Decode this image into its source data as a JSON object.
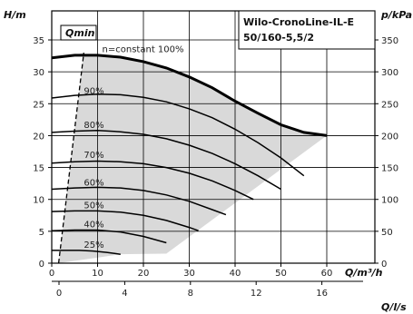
{
  "chart_data": {
    "type": "line",
    "title": "Wilo-CronoLine-IL-E",
    "subtitle": "50/160-5,5/2",
    "y_left_label": "H/m",
    "y_right_label": "p/kPa",
    "x_label": "Q/m³/h",
    "x2_label": "Q/l/s",
    "ylim": [
      0,
      36
    ],
    "xlim": [
      0,
      64
    ],
    "y_ticks": [
      0,
      5,
      10,
      15,
      20,
      25,
      30,
      35
    ],
    "y_right_ticks": [
      0,
      50,
      100,
      150,
      200,
      250,
      300,
      350
    ],
    "x_ticks": [
      0,
      10,
      20,
      30,
      40,
      50,
      60
    ],
    "x2_ticks": [
      0,
      4,
      8,
      12,
      16
    ],
    "qmin_label": "Qmin",
    "qmin_line": {
      "x": [
        1.5,
        7
      ],
      "y": [
        0,
        33
      ]
    },
    "grid": true,
    "series": [
      {
        "name": "n=constant 100%",
        "x": [
          0,
          5,
          10,
          15,
          20,
          25,
          30,
          35,
          40,
          45,
          50,
          55,
          60
        ],
        "y": [
          32.2,
          32.6,
          32.6,
          32.3,
          31.6,
          30.6,
          29.2,
          27.5,
          25.4,
          23.5,
          21.7,
          20.5,
          20.0
        ]
      },
      {
        "name": "90%",
        "x": [
          0,
          5,
          10,
          15,
          20,
          25,
          30,
          35,
          40,
          45,
          50,
          55
        ],
        "y": [
          25.9,
          26.3,
          26.5,
          26.4,
          26.0,
          25.3,
          24.2,
          22.8,
          21.0,
          18.9,
          16.5,
          13.7
        ]
      },
      {
        "name": "80%",
        "x": [
          0,
          5,
          10,
          15,
          20,
          25,
          30,
          35,
          40,
          45,
          50
        ],
        "y": [
          20.5,
          20.7,
          20.8,
          20.6,
          20.2,
          19.5,
          18.5,
          17.2,
          15.6,
          13.7,
          11.6
        ]
      },
      {
        "name": "70%",
        "x": [
          0,
          5,
          10,
          15,
          20,
          25,
          30,
          35,
          40,
          44
        ],
        "y": [
          15.7,
          15.9,
          16.0,
          15.9,
          15.6,
          15.0,
          14.1,
          12.9,
          11.4,
          10.0
        ]
      },
      {
        "name": "60%",
        "x": [
          0,
          5,
          10,
          15,
          20,
          25,
          30,
          35,
          38
        ],
        "y": [
          11.6,
          11.8,
          11.9,
          11.8,
          11.4,
          10.7,
          9.7,
          8.4,
          7.6
        ]
      },
      {
        "name": "50%",
        "x": [
          0,
          5,
          10,
          15,
          20,
          25,
          30,
          32
        ],
        "y": [
          8.1,
          8.2,
          8.2,
          8.0,
          7.5,
          6.7,
          5.6,
          5.1
        ]
      },
      {
        "name": "40%",
        "x": [
          0,
          5,
          10,
          15,
          20,
          25
        ],
        "y": [
          5.1,
          5.2,
          5.2,
          4.9,
          4.2,
          3.2
        ]
      },
      {
        "name": "25%",
        "x": [
          0,
          3,
          6,
          9,
          12,
          15
        ],
        "y": [
          2.0,
          2.0,
          2.0,
          1.9,
          1.7,
          1.4
        ]
      }
    ],
    "label_positions": [
      {
        "name": "n=constant 100%",
        "x": 11,
        "y": 33.1
      },
      {
        "name": "90%",
        "x": 7,
        "y": 26.5
      },
      {
        "name": "80%",
        "x": 7,
        "y": 21.2
      },
      {
        "name": "70%",
        "x": 7,
        "y": 16.5
      },
      {
        "name": "60%",
        "x": 7,
        "y": 12.2
      },
      {
        "name": "50%",
        "x": 7,
        "y": 8.6
      },
      {
        "name": "40%",
        "x": 7,
        "y": 5.6
      },
      {
        "name": "25%",
        "x": 7,
        "y": 2.4
      }
    ],
    "shaded_region_color": "#d9d9d9",
    "line_color": "#000000"
  }
}
